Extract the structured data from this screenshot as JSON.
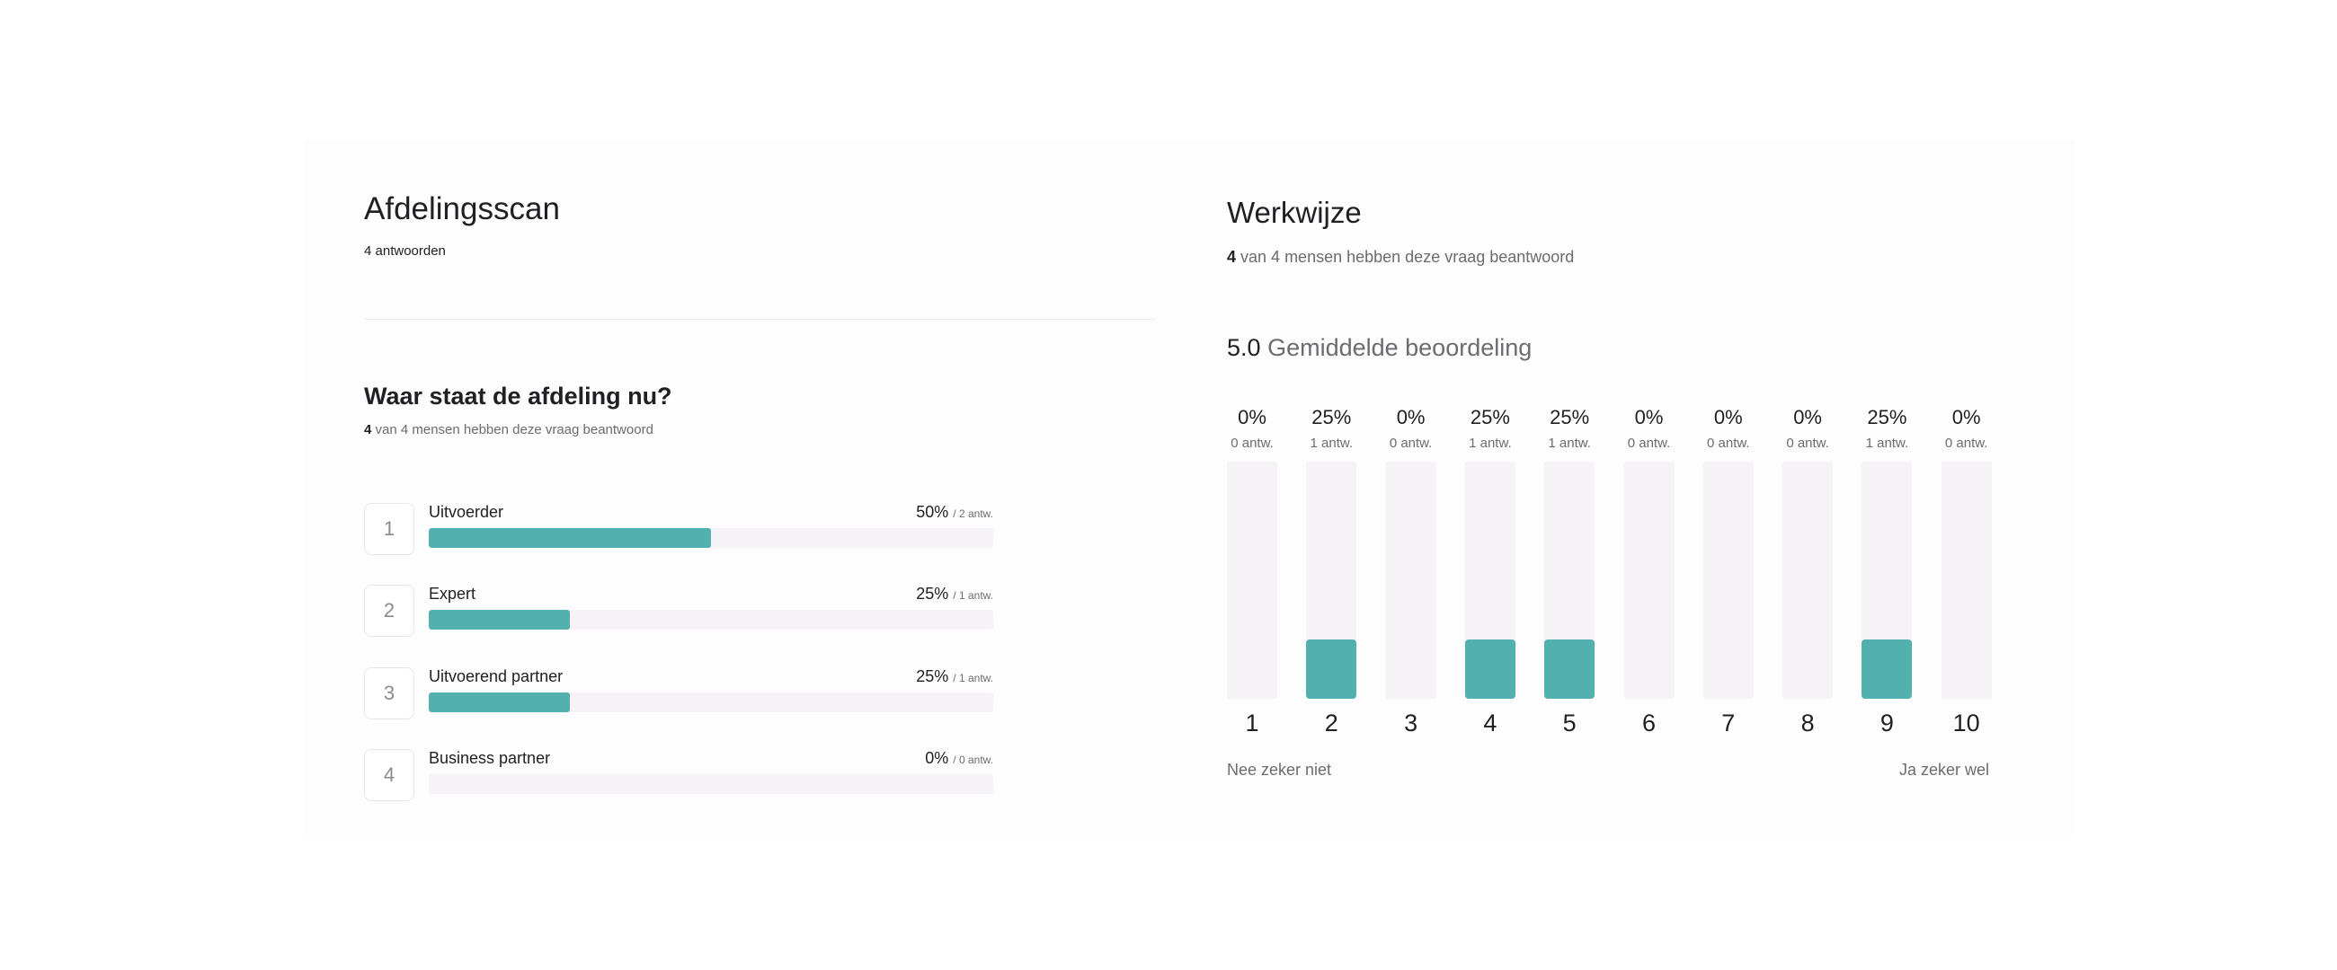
{
  "left": {
    "title": "Afdelingsscan",
    "responses": "4 antwoorden",
    "question": {
      "title": "Waar staat de afdeling nu?",
      "answered_count": "4",
      "answered_text": "van 4 mensen hebben deze vraag beantwoord",
      "options": [
        {
          "num": "1",
          "label": "Uitvoerder",
          "pct": "50%",
          "count": "/ 2 antw.",
          "fraction": 0.5
        },
        {
          "num": "2",
          "label": "Expert",
          "pct": "25%",
          "count": "/ 1 antw.",
          "fraction": 0.25
        },
        {
          "num": "3",
          "label": "Uitvoerend partner",
          "pct": "25%",
          "count": "/ 1 antw.",
          "fraction": 0.25
        },
        {
          "num": "4",
          "label": "Business partner",
          "pct": "0%",
          "count": "/ 0 antw.",
          "fraction": 0
        }
      ]
    }
  },
  "right": {
    "title": "Werkwijze",
    "answered_count": "4",
    "answered_text": "van 4 mensen hebben deze vraag beantwoord",
    "average_value": "5.0",
    "average_label": "Gemiddelde beoordeling",
    "scale_low_label": "Nee zeker niet",
    "scale_high_label": "Ja zeker wel"
  },
  "chart_data": {
    "type": "bar",
    "categories": [
      "1",
      "2",
      "3",
      "4",
      "5",
      "6",
      "7",
      "8",
      "9",
      "10"
    ],
    "values": [
      0,
      25,
      0,
      25,
      25,
      0,
      0,
      0,
      25,
      0
    ],
    "value_labels": [
      "0%",
      "25%",
      "0%",
      "25%",
      "25%",
      "0%",
      "0%",
      "0%",
      "25%",
      "0%"
    ],
    "count_labels": [
      "0 antw.",
      "1 antw.",
      "0 antw.",
      "1 antw.",
      "1 antw.",
      "0 antw.",
      "0 antw.",
      "0 antw.",
      "1 antw.",
      "0 antw."
    ],
    "ylim": [
      0,
      100
    ],
    "title": "",
    "xlabel": "",
    "ylabel": ""
  },
  "colors": {
    "accent": "#52b0ae",
    "track": "#f5f3f6"
  }
}
